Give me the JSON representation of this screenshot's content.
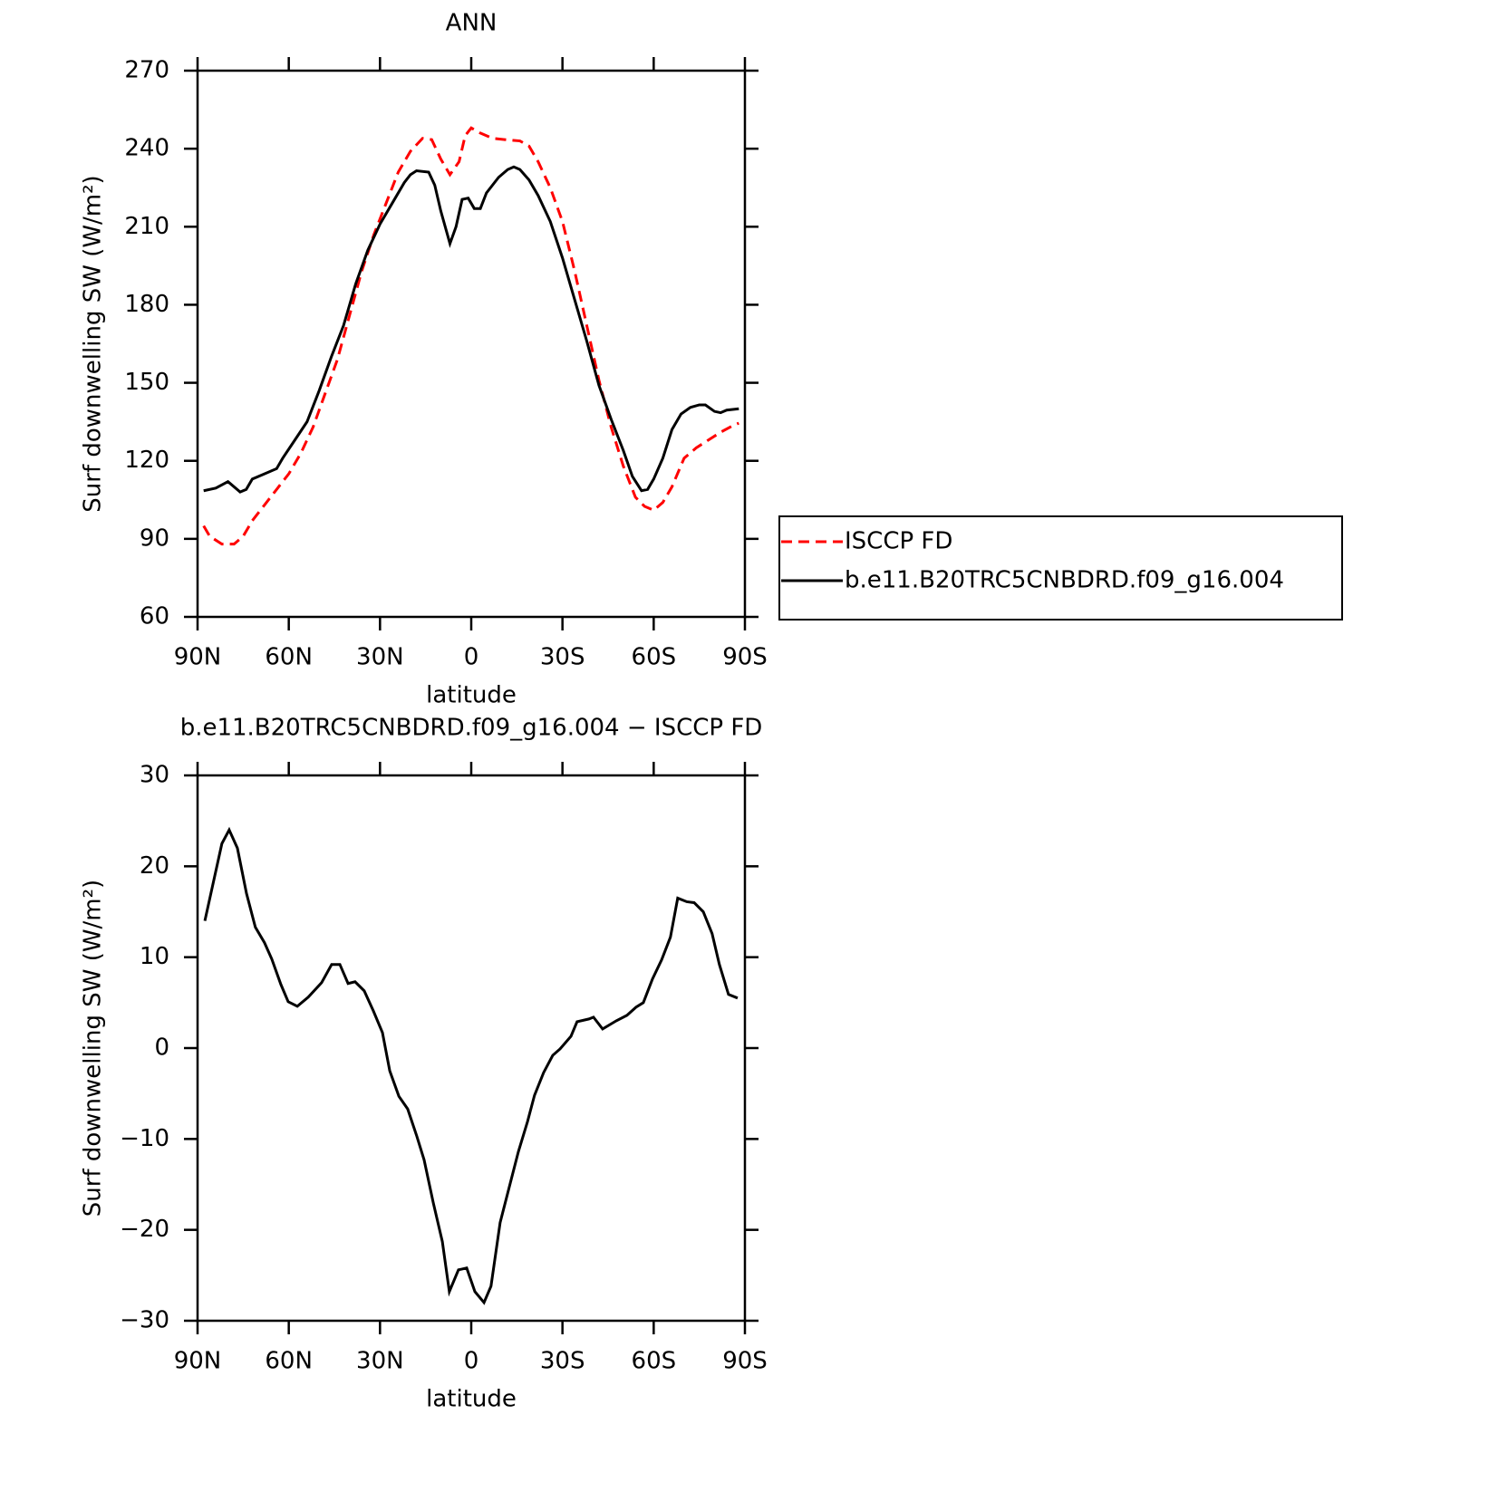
{
  "chart_data": [
    {
      "type": "line",
      "title": "ANN",
      "xlabel": "latitude",
      "ylabel": "Surf downwelling SW (W/m²)",
      "xlim": [
        90,
        -90
      ],
      "xticks": [
        {
          "value": 90,
          "label": "90N"
        },
        {
          "value": 60,
          "label": "60N"
        },
        {
          "value": 30,
          "label": "30N"
        },
        0,
        {
          "value": -30,
          "label": "30S"
        },
        {
          "value": -60,
          "label": "60S"
        },
        {
          "value": -90,
          "label": "90S"
        }
      ],
      "ylim": [
        60,
        270
      ],
      "yticks": [
        60,
        90,
        120,
        150,
        180,
        210,
        240,
        270
      ],
      "legend": "right",
      "series": [
        {
          "name": "ISCCP FD",
          "color": "#ff0000",
          "dash": true,
          "x": [
            88,
            86,
            82,
            78,
            75,
            72,
            68,
            64,
            60,
            56,
            52,
            48,
            44,
            40,
            36,
            32,
            28,
            24,
            20,
            16,
            13,
            10,
            7,
            4,
            2,
            0,
            -3,
            -7,
            -11,
            -16,
            -19,
            -22,
            -26,
            -30,
            -34,
            -38,
            -42,
            -46,
            -50,
            -54,
            -57,
            -60,
            -63,
            -66,
            -70,
            -74,
            -78,
            -82,
            -86,
            -88
          ],
          "values": [
            95,
            91,
            88,
            88,
            91,
            97,
            103,
            109,
            115,
            123,
            133,
            146,
            159,
            176,
            193,
            207,
            219,
            231,
            239,
            244,
            243.5,
            236,
            230,
            235,
            245,
            248,
            246,
            244,
            243.5,
            243,
            241,
            235,
            225,
            212,
            193,
            172,
            151,
            133,
            118,
            106,
            102.5,
            101,
            104,
            110,
            121,
            125,
            128,
            131,
            133.5,
            134.5
          ]
        },
        {
          "name": "b.e11.B20TRC5CNBDRD.f09_g16.004",
          "color": "#000000",
          "dash": false,
          "x": [
            88,
            84,
            80,
            76,
            74,
            72,
            68,
            64,
            62,
            58,
            54,
            50,
            46,
            42,
            38,
            34,
            30,
            26,
            22,
            20,
            18,
            14,
            12,
            10,
            7,
            5,
            3,
            1,
            -1,
            -3,
            -5,
            -9,
            -12,
            -14,
            -16,
            -19,
            -22,
            -26,
            -30,
            -34,
            -38,
            -42,
            -46,
            -50,
            -53,
            -56,
            -58,
            -60,
            -63,
            -66,
            -69,
            -72,
            -75,
            -77,
            -80,
            -82,
            -84,
            -88
          ],
          "values": [
            108.5,
            109.5,
            112,
            108,
            109,
            113,
            115,
            117,
            121,
            128,
            135,
            147,
            160,
            172,
            188,
            201,
            211,
            219,
            227,
            230,
            231.5,
            231,
            226,
            216,
            203.5,
            210,
            220.5,
            221,
            217,
            217,
            223,
            229,
            232,
            233,
            232,
            228,
            222,
            212,
            198,
            182,
            166,
            149,
            136,
            124,
            114,
            108.5,
            109,
            113,
            121,
            132,
            138,
            140.5,
            141.5,
            141.5,
            139,
            138.5,
            139.5,
            140
          ]
        }
      ]
    },
    {
      "type": "line",
      "title": "b.e11.B20TRC5CNBDRD.f09_g16.004 − ISCCP FD",
      "xlabel": "latitude",
      "ylabel": "Surf downwelling SW (W/m²)",
      "xlim": [
        90,
        -90
      ],
      "xticks": [
        {
          "value": 90,
          "label": "90N"
        },
        {
          "value": 60,
          "label": "60N"
        },
        {
          "value": 30,
          "label": "30N"
        },
        0,
        {
          "value": -30,
          "label": "30S"
        },
        {
          "value": -60,
          "label": "60S"
        },
        {
          "value": -90,
          "label": "90S"
        }
      ],
      "ylim": [
        -30,
        30
      ],
      "yticks": [
        {
          "value": -30,
          "label": "−30"
        },
        {
          "value": -20,
          "label": "−20"
        },
        {
          "value": -10,
          "label": "−10"
        },
        0,
        10,
        20,
        30
      ],
      "series": [
        {
          "color": "#000000",
          "dash": false,
          "x": [
            87.6,
            82,
            79.6,
            76.9,
            73.9,
            71,
            68,
            65.6,
            62.6,
            60.2,
            57.2,
            53.6,
            49.2,
            45.9,
            43.2,
            40.5,
            38.2,
            35.2,
            32.2,
            29.2,
            26.8,
            23.8,
            20.9,
            17.9,
            15.5,
            12.5,
            9.5,
            7.2,
            4.2,
            1.5,
            -1.2,
            -4.2,
            -6.5,
            -9.5,
            -12.5,
            -15.5,
            -18.5,
            -20.8,
            -23.8,
            -26.8,
            -29.2,
            -32.8,
            -34.8,
            -38.7,
            -40.2,
            -43.2,
            -47.7,
            -51.2,
            -54.2,
            -56.6,
            -59.6,
            -62.6,
            -65.5,
            -67.9,
            -70.9,
            -73.3,
            -76.3,
            -79.2,
            -81.6,
            -84.6,
            -87.6
          ],
          "values": [
            14,
            22.5,
            24,
            22,
            17,
            13.3,
            11.6,
            9.8,
            7,
            5.1,
            4.6,
            5.6,
            7.2,
            9.2,
            9.2,
            7.1,
            7.3,
            6.3,
            4.1,
            1.7,
            -2.5,
            -5.3,
            -6.7,
            -9.7,
            -12.3,
            -17,
            -21.3,
            -26.8,
            -24.4,
            -24.2,
            -26.8,
            -28,
            -26.2,
            -19.2,
            -15.3,
            -11.4,
            -8.1,
            -5.2,
            -2.7,
            -0.8,
            -0.1,
            1.3,
            2.9,
            3.2,
            3.4,
            2.1,
            3.0,
            3.6,
            4.5,
            5.0,
            7.6,
            9.7,
            12.2,
            16.5,
            16.1,
            16,
            15,
            12.6,
            9.2,
            5.9,
            5.5
          ]
        }
      ]
    }
  ]
}
